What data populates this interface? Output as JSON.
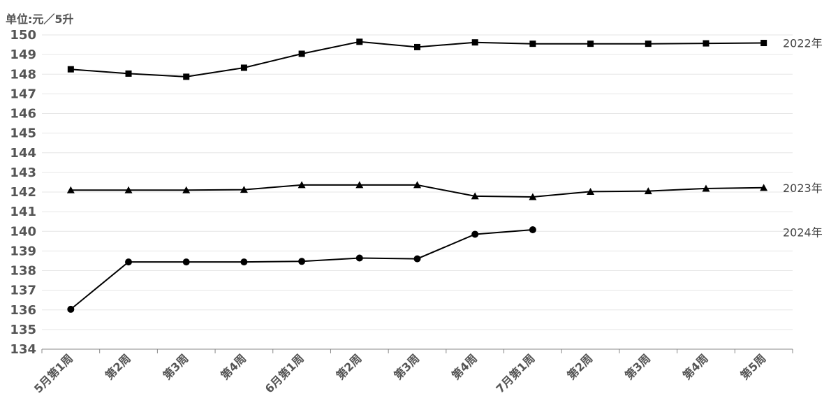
{
  "chart_data": {
    "type": "line",
    "unit_label": "单位:元／5升",
    "categories": [
      "5月第1周",
      "第2周",
      "第3周",
      "第4周",
      "6月第1周",
      "第2周",
      "第3周",
      "第4周",
      "7月第1周",
      "第2周",
      "第3周",
      "第4周",
      "第5周"
    ],
    "ylim": [
      134,
      150
    ],
    "yticks": [
      150,
      149,
      148,
      147,
      146,
      145,
      144,
      143,
      142,
      141,
      140,
      139,
      138,
      137,
      136,
      135,
      134
    ],
    "grid": true,
    "series": [
      {
        "name": "2022年",
        "marker": "square",
        "values": [
          148.25,
          148.03,
          147.87,
          148.33,
          149.04,
          149.65,
          149.38,
          149.62,
          149.55,
          149.55,
          149.55,
          149.57,
          149.59
        ]
      },
      {
        "name": "2023年",
        "marker": "triangle",
        "values": [
          142.1,
          142.1,
          142.1,
          142.12,
          142.36,
          142.36,
          142.36,
          141.79,
          141.75,
          142.02,
          142.05,
          142.18,
          142.22
        ]
      },
      {
        "name": "2024年",
        "marker": "circle",
        "values": [
          136.03,
          138.44,
          138.44,
          138.44,
          138.47,
          138.64,
          138.6,
          139.85,
          140.08,
          null,
          null,
          null,
          null
        ]
      }
    ]
  }
}
